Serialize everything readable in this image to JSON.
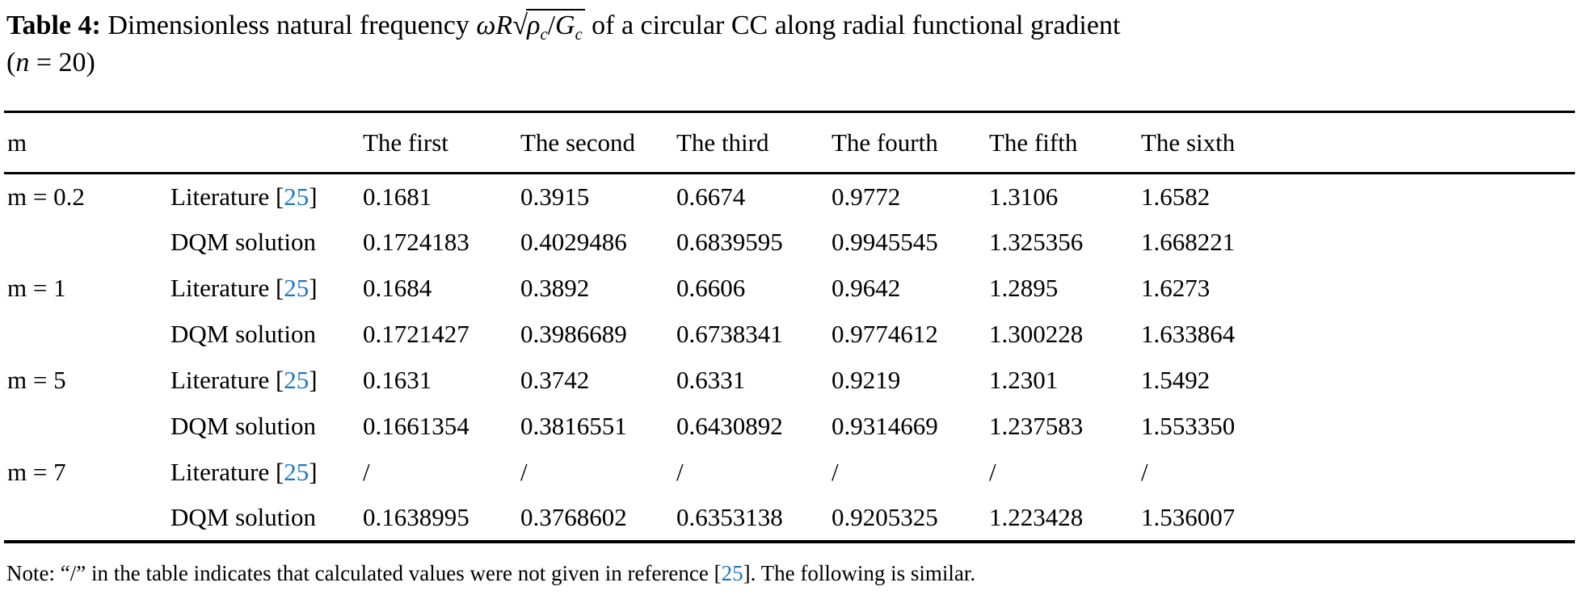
{
  "page": {
    "background_color": "#ffffff",
    "text_color": "#000000",
    "reference_link_color": "#1d76c5"
  },
  "title": {
    "label": "Table 4:",
    "pre": "Dimensionless natural frequency",
    "math_omega_r": "ωR",
    "math_radical": "√",
    "math_rho": "ρ",
    "math_sub_rho": "c",
    "math_slash": "/",
    "math_g": "G",
    "math_sub_g": "c",
    "post": "of a circular CC along radial functional gradient",
    "line2_open": "(",
    "line2_var": "n",
    "line2_rest": " = 20)"
  },
  "brackets": {
    "open": "[",
    "close": "]"
  },
  "table": {
    "headers": [
      "m",
      "",
      "The first",
      "The second",
      "The third",
      "The fourth",
      "The fifth",
      "The sixth"
    ],
    "rows": [
      {
        "m": "m = 0.2",
        "method": "Literature",
        "ref": "25",
        "values": [
          "0.1681",
          "0.3915",
          "0.6674",
          "0.9772",
          "1.3106",
          "1.6582"
        ]
      },
      {
        "m": "",
        "method": "DQM solution",
        "values": [
          "0.1724183",
          "0.4029486",
          "0.6839595",
          "0.9945545",
          "1.325356",
          "1.668221"
        ]
      },
      {
        "m": "m = 1",
        "method": "Literature",
        "ref": "25",
        "values": [
          "0.1684",
          "0.3892",
          "0.6606",
          "0.9642",
          "1.2895",
          "1.6273"
        ]
      },
      {
        "m": "",
        "method": "DQM solution",
        "values": [
          "0.1721427",
          "0.3986689",
          "0.6738341",
          "0.9774612",
          "1.300228",
          "1.633864"
        ]
      },
      {
        "m": "m = 5",
        "method": "Literature",
        "ref": "25",
        "values": [
          "0.1631",
          "0.3742",
          "0.6331",
          "0.9219",
          "1.2301",
          "1.5492"
        ]
      },
      {
        "m": "",
        "method": "DQM solution",
        "values": [
          "0.1661354",
          "0.3816551",
          "0.6430892",
          "0.9314669",
          "1.237583",
          "1.553350"
        ]
      },
      {
        "m": "m = 7",
        "method": "Literature",
        "ref": "25",
        "values": [
          "/",
          "/",
          "/",
          "/",
          "/",
          "/"
        ]
      },
      {
        "m": "",
        "method": "DQM solution",
        "values": [
          "0.1638995",
          "0.3768602",
          "0.6353138",
          "0.9205325",
          "1.223428",
          "1.536007"
        ]
      }
    ]
  },
  "note": {
    "pre": "Note: “/” in the table indicates that calculated values were not given in reference",
    "ref": "25",
    "post": ". The following is similar."
  }
}
